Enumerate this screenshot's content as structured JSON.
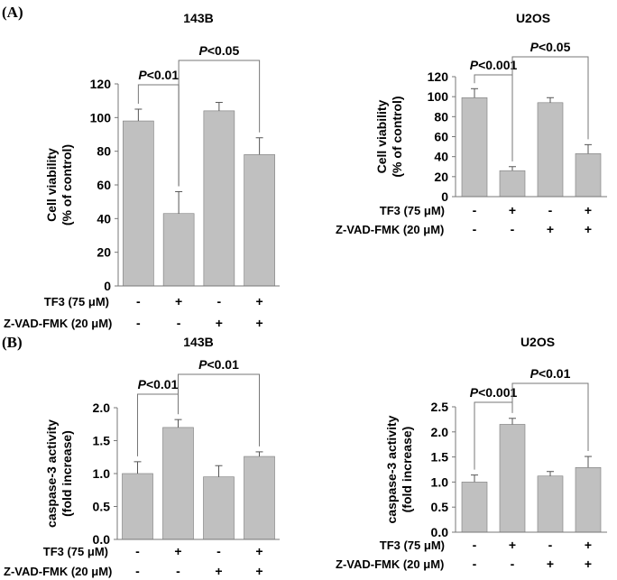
{
  "panel_labels": [
    "(A)",
    "(B)"
  ],
  "chart_data": [
    {
      "type": "bar",
      "title": "143B",
      "ylabel_line1": "Cell viability",
      "ylabel_line2": "(% of control)",
      "ylim": [
        0,
        120
      ],
      "yticks": [
        "0",
        "20",
        "40",
        "60",
        "80",
        "100",
        "120"
      ],
      "categories": [
        "1",
        "2",
        "3",
        "4"
      ],
      "values": [
        98,
        43,
        104,
        78
      ],
      "errors": [
        7,
        13,
        5,
        10
      ],
      "bar_color": "#c0c0c0",
      "treatments": [
        {
          "label": "TF3 (75 μM)",
          "signs": [
            "-",
            "+",
            "-",
            "+"
          ]
        },
        {
          "label": "Z-VAD-FMK (20 μM)",
          "signs": [
            "-",
            "-",
            "+",
            "+"
          ]
        }
      ],
      "significance": [
        {
          "p": "P",
          "rest": "<0.01",
          "from": 0,
          "to": 1,
          "level": 1
        },
        {
          "p": "P",
          "rest": "<0.05",
          "from": 1,
          "to": 3,
          "level": 2
        }
      ]
    },
    {
      "type": "bar",
      "title": "U2OS",
      "ylabel_line1": "Cell viability",
      "ylabel_line2": "(% of control)",
      "ylim": [
        0,
        120
      ],
      "yticks": [
        "0",
        "20",
        "40",
        "60",
        "80",
        "100",
        "120"
      ],
      "categories": [
        "1",
        "2",
        "3",
        "4"
      ],
      "values": [
        99,
        26,
        94,
        43
      ],
      "errors": [
        9,
        4,
        5,
        9
      ],
      "bar_color": "#c0c0c0",
      "treatments": [
        {
          "label": "TF3 (75 μM)",
          "signs": [
            "-",
            "+",
            "-",
            "+"
          ]
        },
        {
          "label": "Z-VAD-FMK (20 μM)",
          "signs": [
            "-",
            "-",
            "+",
            "+"
          ]
        }
      ],
      "significance": [
        {
          "p": "P",
          "rest": "<0.001",
          "from": 0,
          "to": 1,
          "level": 1
        },
        {
          "p": "P",
          "rest": "<0.05",
          "from": 1,
          "to": 3,
          "level": 2
        }
      ]
    },
    {
      "type": "bar",
      "title": "143B",
      "ylabel_line1": "caspase-3 activity",
      "ylabel_line2": "(fold increase)",
      "ylim": [
        0,
        2.0
      ],
      "yticks": [
        "0.0",
        "0.5",
        "1.0",
        "1.5",
        "2.0"
      ],
      "categories": [
        "1",
        "2",
        "3",
        "4"
      ],
      "values": [
        1.0,
        1.7,
        0.95,
        1.26
      ],
      "errors": [
        0.18,
        0.12,
        0.17,
        0.07
      ],
      "bar_color": "#c0c0c0",
      "treatments": [
        {
          "label": "TF3 (75 μM)",
          "signs": [
            "-",
            "+",
            "-",
            "+"
          ]
        },
        {
          "label": "Z-VAD-FMK (20 μM)",
          "signs": [
            "-",
            "-",
            "+",
            "+"
          ]
        }
      ],
      "significance": [
        {
          "p": "P",
          "rest": "<0.01",
          "from": 0,
          "to": 1,
          "level": 1
        },
        {
          "p": "P",
          "rest": "<0.01",
          "from": 1,
          "to": 3,
          "level": 2
        }
      ]
    },
    {
      "type": "bar",
      "title": "U2OS",
      "ylabel_line1": "caspase-3 activity",
      "ylabel_line2": "(fold increase)",
      "ylim": [
        0,
        2.5
      ],
      "yticks": [
        "0.0",
        "0.5",
        "1.0",
        "1.5",
        "2.0",
        "2.5"
      ],
      "categories": [
        "1",
        "2",
        "3",
        "4"
      ],
      "values": [
        1.0,
        2.15,
        1.12,
        1.29
      ],
      "errors": [
        0.14,
        0.12,
        0.09,
        0.22
      ],
      "bar_color": "#c0c0c0",
      "treatments": [
        {
          "label": "TF3 (75 μM)",
          "signs": [
            "-",
            "+",
            "-",
            "+"
          ]
        },
        {
          "label": "Z-VAD-FMK (20 μM)",
          "signs": [
            "-",
            "-",
            "+",
            "+"
          ]
        }
      ],
      "significance": [
        {
          "p": "P",
          "rest": "<0.001",
          "from": 0,
          "to": 1,
          "level": 1
        },
        {
          "p": "P",
          "rest": "<0.01",
          "from": 1,
          "to": 3,
          "level": 2
        }
      ]
    }
  ]
}
